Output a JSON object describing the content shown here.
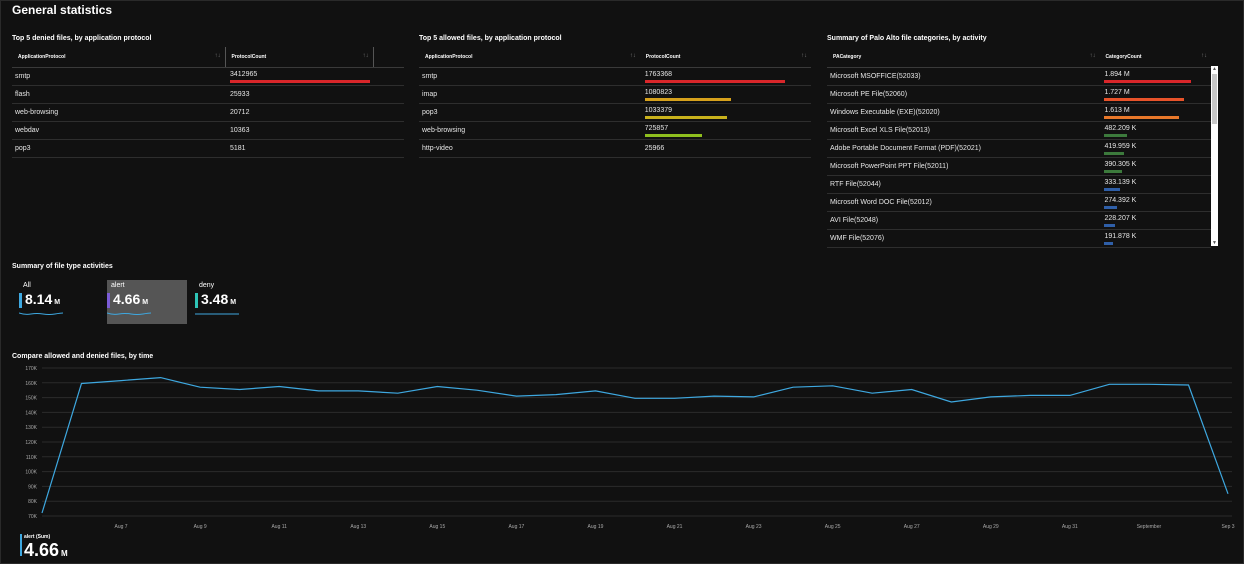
{
  "page": {
    "title": "General statistics"
  },
  "denied": {
    "title": "Top 5 denied files, by application protocol",
    "columns": [
      "ApplicationProtocol",
      "ProtocolCount"
    ],
    "rows": [
      {
        "protocol": "smtp",
        "count": "3412965",
        "value": 3412965,
        "bar_color": "#d9262a"
      },
      {
        "protocol": "flash",
        "count": "25933",
        "value": 25933
      },
      {
        "protocol": "web-browsing",
        "count": "20712",
        "value": 20712
      },
      {
        "protocol": "webdav",
        "count": "10363",
        "value": 10363
      },
      {
        "protocol": "pop3",
        "count": "5181",
        "value": 5181
      }
    ]
  },
  "allowed": {
    "title": "Top 5 allowed files, by application protocol",
    "columns": [
      "ApplicationProtocol",
      "ProtocolCount"
    ],
    "rows": [
      {
        "protocol": "smtp",
        "count": "1763368",
        "value": 1763368,
        "bar_color": "#d9262a"
      },
      {
        "protocol": "imap",
        "count": "1080823",
        "value": 1080823,
        "bar_color": "#d6a11c"
      },
      {
        "protocol": "pop3",
        "count": "1033379",
        "value": 1033379,
        "bar_color": "#c9b21c"
      },
      {
        "protocol": "web-browsing",
        "count": "725857",
        "value": 725857,
        "bar_color": "#8fbf1e"
      },
      {
        "protocol": "http-video",
        "count": "25966",
        "value": 25966
      }
    ]
  },
  "categories": {
    "title": "Summary of Palo Alto file categories, by activity",
    "columns": [
      "PACategory",
      "CategoryCount"
    ],
    "rows": [
      {
        "category": "Microsoft MSOFFICE(52033)",
        "count": "1.894 M",
        "value": 1894,
        "bar_color": "#d9262a"
      },
      {
        "category": "Microsoft PE File(52060)",
        "count": "1.727 M",
        "value": 1727,
        "bar_color": "#e8532a"
      },
      {
        "category": "Windows Executable (EXE)(52020)",
        "count": "1.613 M",
        "value": 1613,
        "bar_color": "#e8782a"
      },
      {
        "category": "Microsoft Excel XLS File(52013)",
        "count": "482.209 K",
        "value": 482,
        "bar_color": "#3c7a3c"
      },
      {
        "category": "Adobe Portable Document Format (PDF)(52021)",
        "count": "419.959 K",
        "value": 420,
        "bar_color": "#3c7a3c"
      },
      {
        "category": "Microsoft PowerPoint PPT File(52011)",
        "count": "390.305 K",
        "value": 390,
        "bar_color": "#3c7a3c"
      },
      {
        "category": "RTF File(52044)",
        "count": "333.139 K",
        "value": 333,
        "bar_color": "#2f5fa8"
      },
      {
        "category": "Microsoft Word DOC File(52012)",
        "count": "274.392 K",
        "value": 274,
        "bar_color": "#2f5fa8"
      },
      {
        "category": "AVI File(52048)",
        "count": "228.207 K",
        "value": 228,
        "bar_color": "#2f5fa8"
      },
      {
        "category": "WMF File(52076)",
        "count": "191.878 K",
        "value": 192,
        "bar_color": "#2f5fa8"
      }
    ]
  },
  "activities": {
    "title": "Summary of file type activities",
    "tiles": [
      {
        "label": "All",
        "value": "8.14",
        "unit": "M",
        "accent": "#3ea8e0",
        "selected": false
      },
      {
        "label": "alert",
        "value": "4.66",
        "unit": "M",
        "accent": "#7b5cd6",
        "selected": true
      },
      {
        "label": "deny",
        "value": "3.48",
        "unit": "M",
        "accent": "#2ec4b6",
        "selected": false
      }
    ]
  },
  "compare": {
    "title": "Compare allowed and denied files, by time",
    "legend_label": "alert (Sum)",
    "legend_value": "4.66",
    "legend_unit": "M"
  },
  "chart_data": {
    "type": "line",
    "title": "Compare allowed and denied files, by time",
    "ylim": [
      70000,
      170000
    ],
    "y_ticks": [
      "70K",
      "80K",
      "90K",
      "100K",
      "110K",
      "120K",
      "130K",
      "140K",
      "150K",
      "160K",
      "170K"
    ],
    "x_ticks": [
      "Aug 7",
      "Aug 9",
      "Aug 11",
      "Aug 13",
      "Aug 15",
      "Aug 17",
      "Aug 19",
      "Aug 21",
      "Aug 23",
      "Aug 25",
      "Aug 27",
      "Aug 29",
      "Aug 31",
      "September",
      "Sep 3"
    ],
    "grid": true,
    "series": [
      {
        "name": "alert (Sum)",
        "color": "#3ea8e0",
        "values": [
          72000,
          159500,
          161500,
          163500,
          157000,
          155500,
          157500,
          154500,
          154500,
          153000,
          157500,
          155000,
          151000,
          152000,
          154500,
          149500,
          149500,
          151000,
          150500,
          157000,
          158000,
          153000,
          155500,
          147000,
          150500,
          151500,
          151500,
          159000,
          159000,
          158500,
          85000
        ]
      }
    ]
  }
}
